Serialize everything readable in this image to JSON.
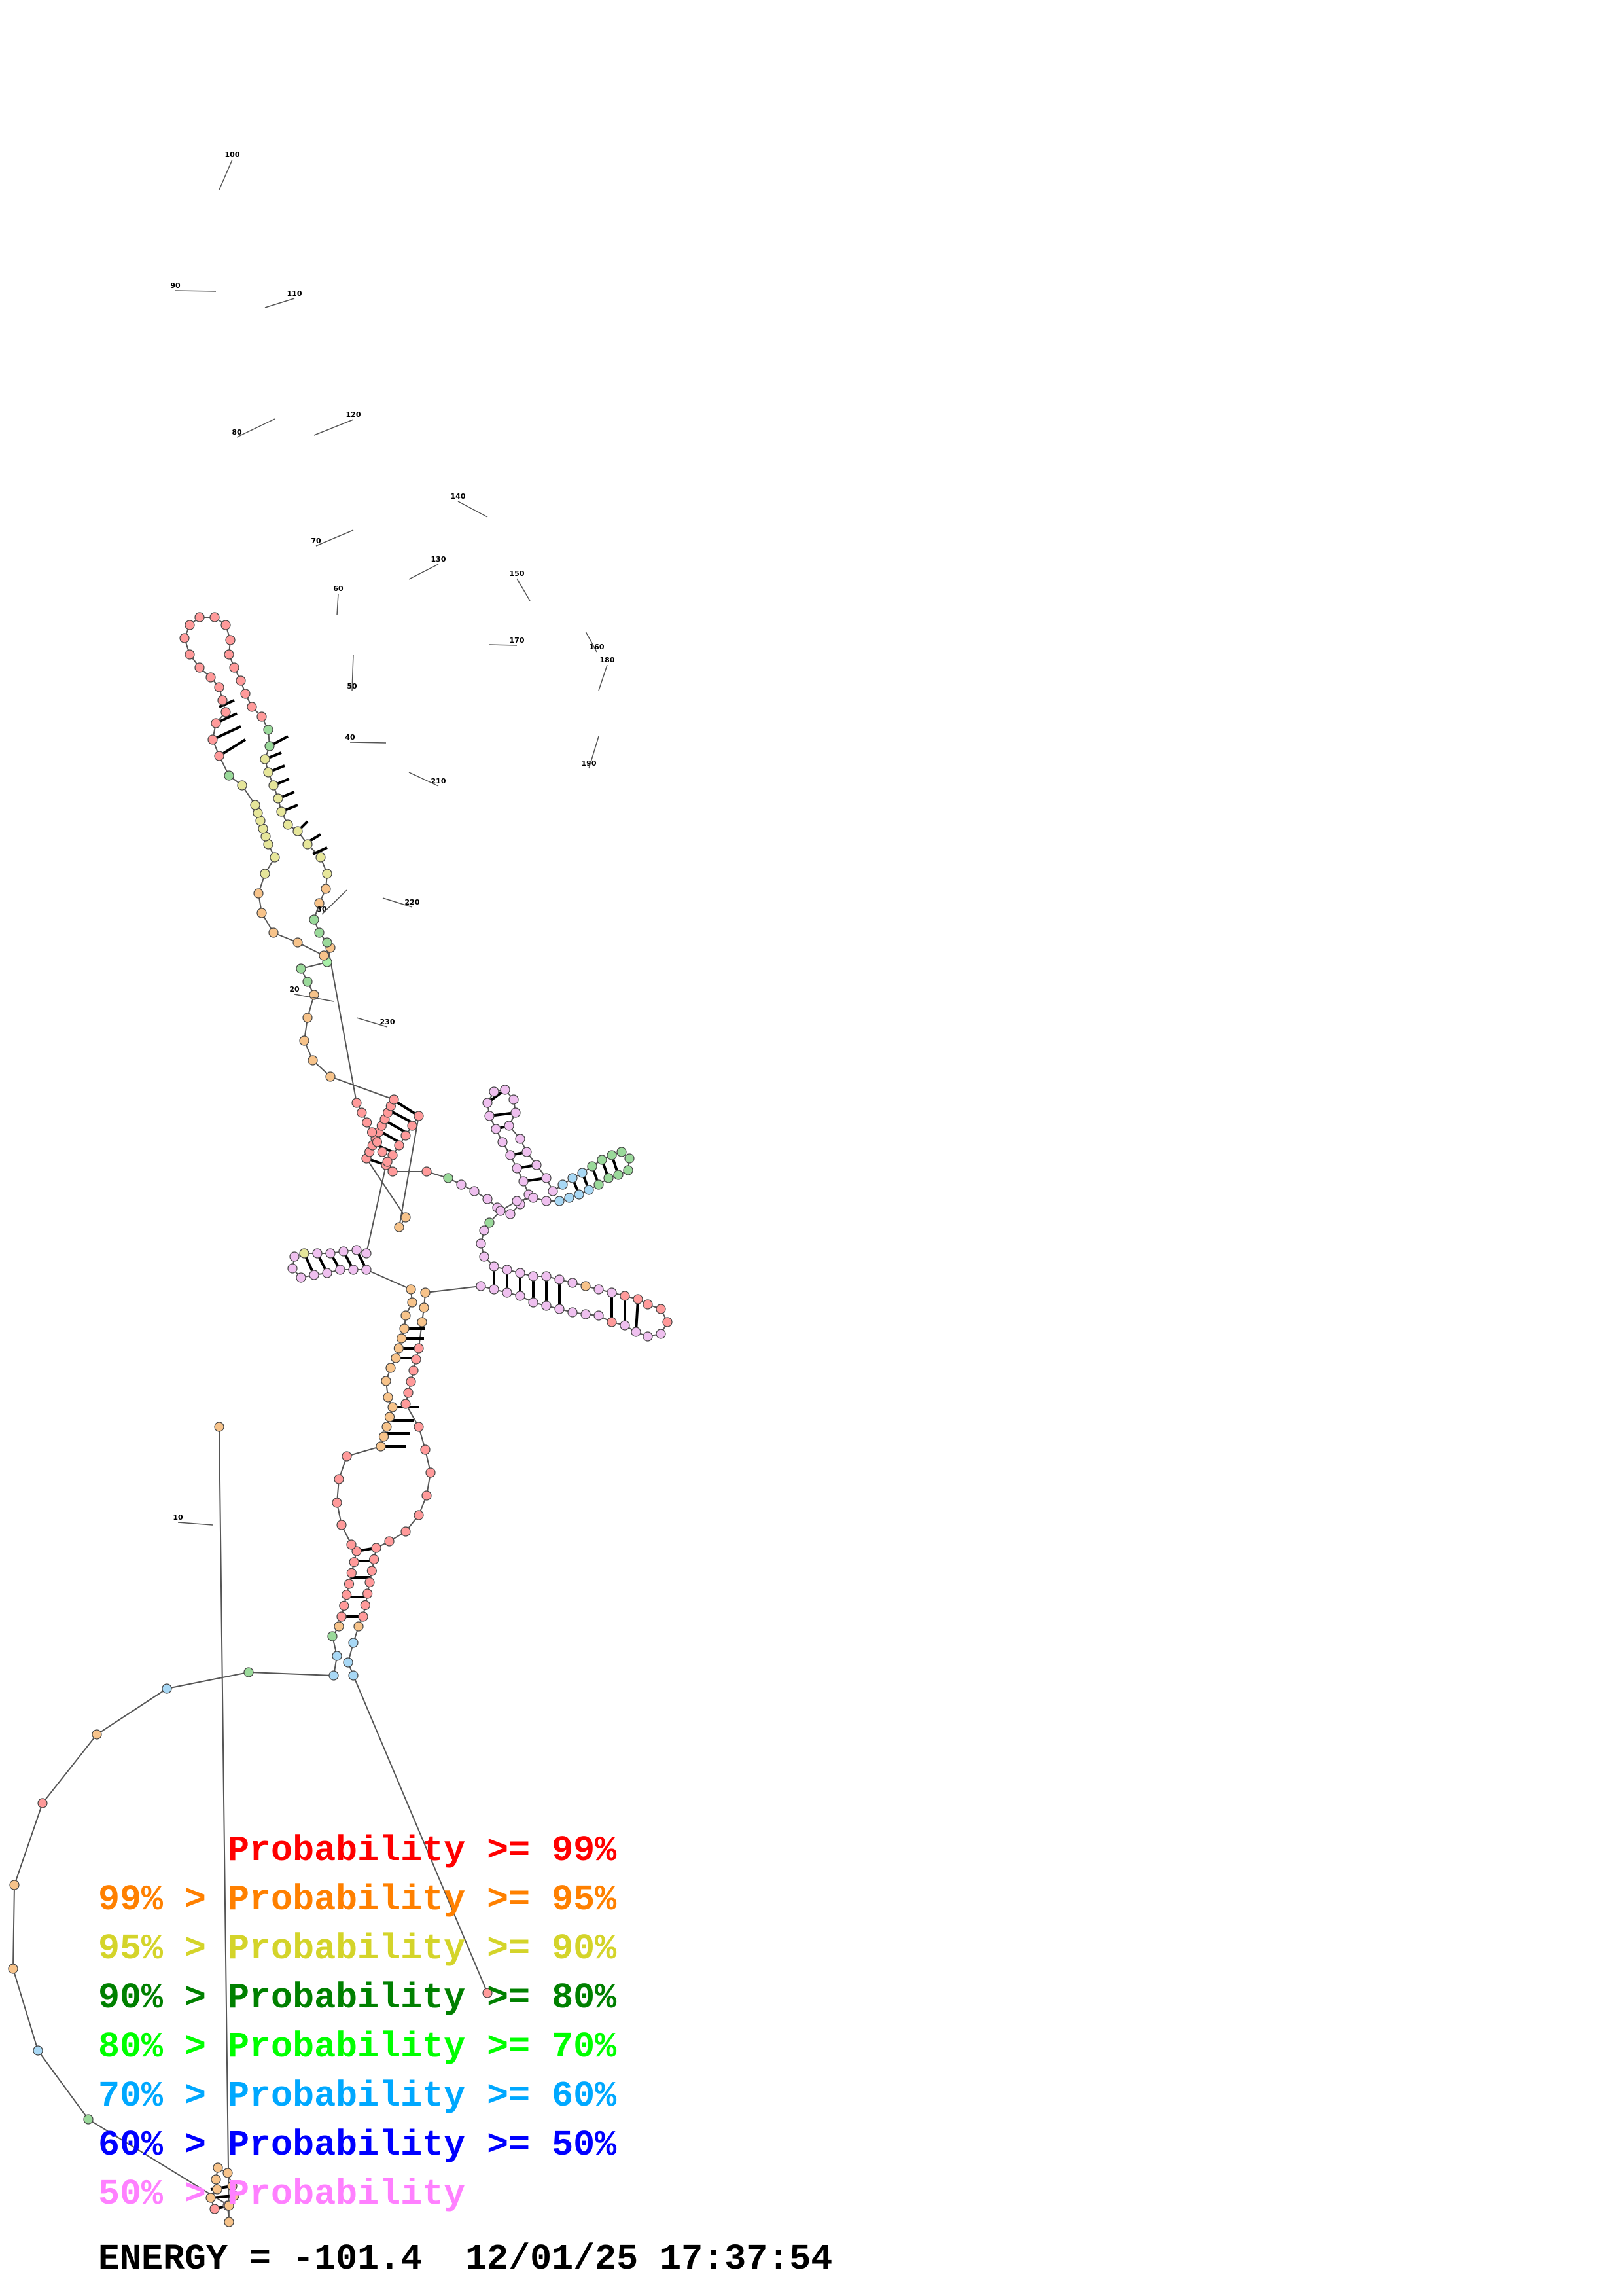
{
  "position_labels": [
    "100",
    "90",
    "110",
    "80",
    "120",
    "70",
    "140",
    "130",
    "150",
    "60",
    "170",
    "160",
    "180",
    "50",
    "40",
    "210",
    "190",
    "30",
    "220",
    "20",
    "230",
    "10"
  ],
  "legend": [
    {
      "prefix": "",
      "text": "Probability >= 99%",
      "color": "#ff0000"
    },
    {
      "prefix": "99% > ",
      "text": "Probability >= 95%",
      "color": "#ff8000"
    },
    {
      "prefix": "95% > ",
      "text": "Probability >= 90%",
      "color": "#d4d42a"
    },
    {
      "prefix": "90% > ",
      "text": "Probability >= 80%",
      "color": "#008000"
    },
    {
      "prefix": "80% > ",
      "text": "Probability >= 70%",
      "color": "#00ff00"
    },
    {
      "prefix": "70% > ",
      "text": "Probability >= 60%",
      "color": "#00a8ff"
    },
    {
      "prefix": "60% > ",
      "text": "Probability >= 50%",
      "color": "#0000ff"
    },
    {
      "prefix": "50% > ",
      "text": "Probability",
      "color": "#ff80ff"
    }
  ],
  "energy": {
    "label": "ENERGY =",
    "value": "-101.4",
    "timestamp": "12/01/25 17:37:54"
  }
}
